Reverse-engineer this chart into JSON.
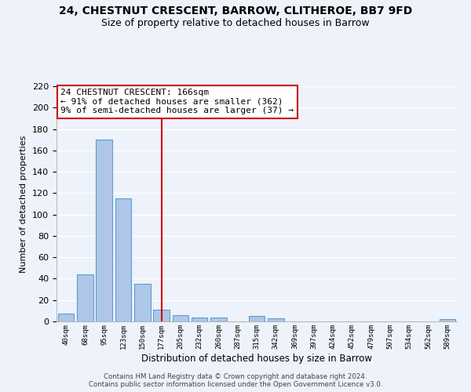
{
  "title": "24, CHESTNUT CRESCENT, BARROW, CLITHEROE, BB7 9FD",
  "subtitle": "Size of property relative to detached houses in Barrow",
  "bar_labels": [
    "40sqm",
    "68sqm",
    "95sqm",
    "123sqm",
    "150sqm",
    "177sqm",
    "205sqm",
    "232sqm",
    "260sqm",
    "287sqm",
    "315sqm",
    "342sqm",
    "369sqm",
    "397sqm",
    "424sqm",
    "452sqm",
    "479sqm",
    "507sqm",
    "534sqm",
    "562sqm",
    "589sqm"
  ],
  "bar_values": [
    7,
    44,
    170,
    115,
    35,
    11,
    6,
    4,
    4,
    0,
    5,
    3,
    0,
    0,
    0,
    0,
    0,
    0,
    0,
    0,
    2
  ],
  "bar_color": "#aec6e8",
  "bar_edge_color": "#5a9fd4",
  "vline_x": 5,
  "vline_color": "#cc0000",
  "annotation_title": "24 CHESTNUT CRESCENT: 166sqm",
  "annotation_line1": "← 91% of detached houses are smaller (362)",
  "annotation_line2": "9% of semi-detached houses are larger (37) →",
  "annotation_box_color": "#ffffff",
  "annotation_box_edge": "#cc0000",
  "xlabel": "Distribution of detached houses by size in Barrow",
  "ylabel": "Number of detached properties",
  "ylim": [
    0,
    220
  ],
  "yticks": [
    0,
    20,
    40,
    60,
    80,
    100,
    120,
    140,
    160,
    180,
    200,
    220
  ],
  "footer_line1": "Contains HM Land Registry data © Crown copyright and database right 2024.",
  "footer_line2": "Contains public sector information licensed under the Open Government Licence v3.0.",
  "bg_color": "#eef2fa",
  "grid_color": "#ffffff",
  "title_fontsize": 10,
  "subtitle_fontsize": 9
}
